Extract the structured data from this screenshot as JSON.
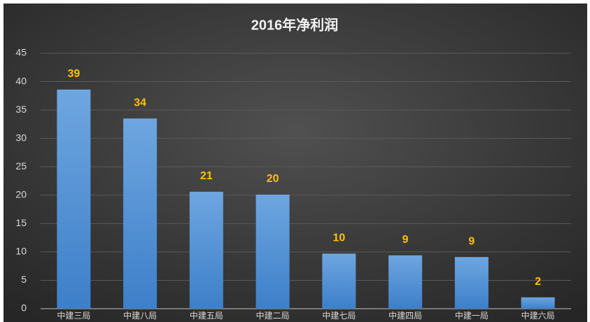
{
  "chart_data": {
    "type": "bar",
    "title": "2016年净利润",
    "categories": [
      "中建三局",
      "中建八局",
      "中建五局",
      "中建二局",
      "中建七局",
      "中建四局",
      "中建一局",
      "中建六局"
    ],
    "values": [
      38.6,
      33.5,
      20.6,
      20.1,
      9.7,
      9.4,
      9.1,
      2.0
    ],
    "value_labels": [
      "39",
      "34",
      "21",
      "20",
      "10",
      "9",
      "9",
      "2"
    ],
    "color": "#5b9bd5",
    "ylim": [
      0,
      45
    ],
    "yticks": [
      0,
      5,
      10,
      15,
      20,
      25,
      30,
      35,
      40,
      45
    ],
    "grid": true
  }
}
